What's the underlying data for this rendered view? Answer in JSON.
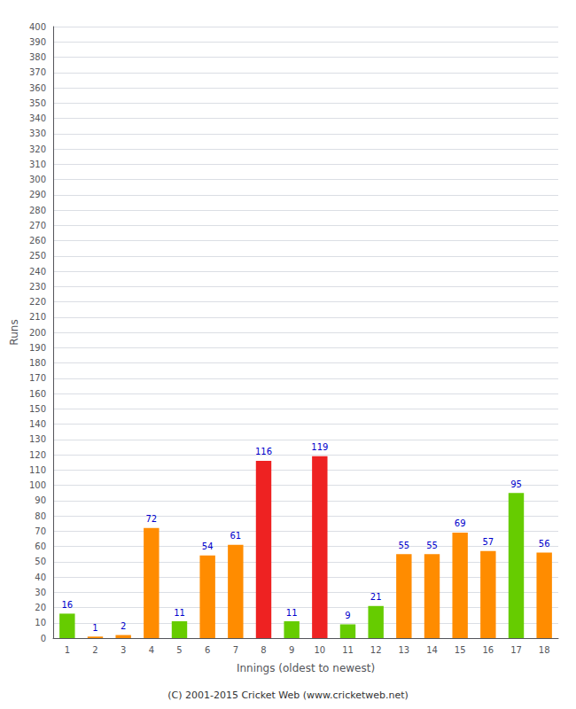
{
  "chart_data": {
    "type": "bar",
    "xlabel": "Innings (oldest to newest)",
    "ylabel": "Runs",
    "footer": "(C) 2001-2015 Cricket Web (www.cricketweb.net)",
    "categories": [
      1,
      2,
      3,
      4,
      5,
      6,
      7,
      8,
      9,
      10,
      11,
      12,
      13,
      14,
      15,
      16,
      17,
      18
    ],
    "values": [
      16,
      1,
      2,
      72,
      11,
      54,
      61,
      116,
      11,
      119,
      9,
      21,
      55,
      55,
      69,
      57,
      95,
      56
    ],
    "colors": [
      "#66cc00",
      "#ff8c00",
      "#ff8c00",
      "#ff8c00",
      "#66cc00",
      "#ff8c00",
      "#ff8c00",
      "#ee2222",
      "#66cc00",
      "#ee2222",
      "#66cc00",
      "#66cc00",
      "#ff8c00",
      "#ff8c00",
      "#ff8c00",
      "#ff8c00",
      "#66cc00",
      "#ff8c00"
    ],
    "ylim": [
      0,
      400
    ],
    "yticks": [
      0,
      10,
      20,
      30,
      40,
      50,
      60,
      70,
      80,
      90,
      100,
      110,
      120,
      130,
      140,
      150,
      160,
      170,
      180,
      190,
      200,
      210,
      220,
      230,
      240,
      250,
      260,
      270,
      280,
      290,
      300,
      310,
      320,
      330,
      340,
      350,
      360,
      370,
      380,
      390,
      400
    ],
    "grid": true,
    "data_labels": true
  }
}
